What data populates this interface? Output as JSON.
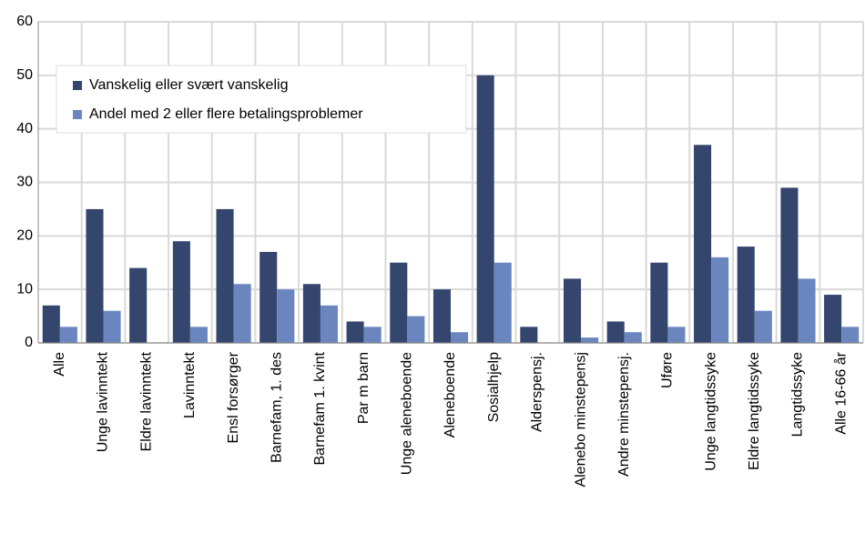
{
  "chart_data": {
    "type": "bar",
    "categories": [
      "Alle",
      "Unge lavinntekt",
      "Eldre lavinntekt",
      "Lavinntekt",
      "Ensl forsørger",
      "Barnefam, 1. des",
      "Barnefam 1. kvint",
      "Par m barn",
      "Unge aleneboende",
      "Aleneboende",
      "Sosialhjelp",
      "Alderspensj.",
      "Alenebo minstepensj",
      "Andre minstepensj.",
      "Uføre",
      "Unge langtidssyke",
      "Eldre langtidssyke",
      "Langtidssyke",
      "Alle 16-66 år"
    ],
    "series": [
      {
        "name": "Vanskelig eller svært vanskelig",
        "color": "#34466e",
        "values": [
          7,
          25,
          14,
          19,
          25,
          17,
          11,
          4,
          15,
          10,
          50,
          3,
          12,
          4,
          15,
          37,
          18,
          29,
          9
        ]
      },
      {
        "name": "Andel med 2 eller flere betalingsproblemer",
        "color": "#6b86bf",
        "values": [
          3,
          6,
          null,
          3,
          11,
          10,
          7,
          3,
          5,
          2,
          15,
          null,
          1,
          2,
          3,
          16,
          6,
          12,
          3
        ]
      }
    ],
    "ylim": [
      0,
      60
    ],
    "yticks": [
      0,
      10,
      20,
      30,
      40,
      50,
      60
    ],
    "grid": true,
    "legend": "upper left"
  }
}
